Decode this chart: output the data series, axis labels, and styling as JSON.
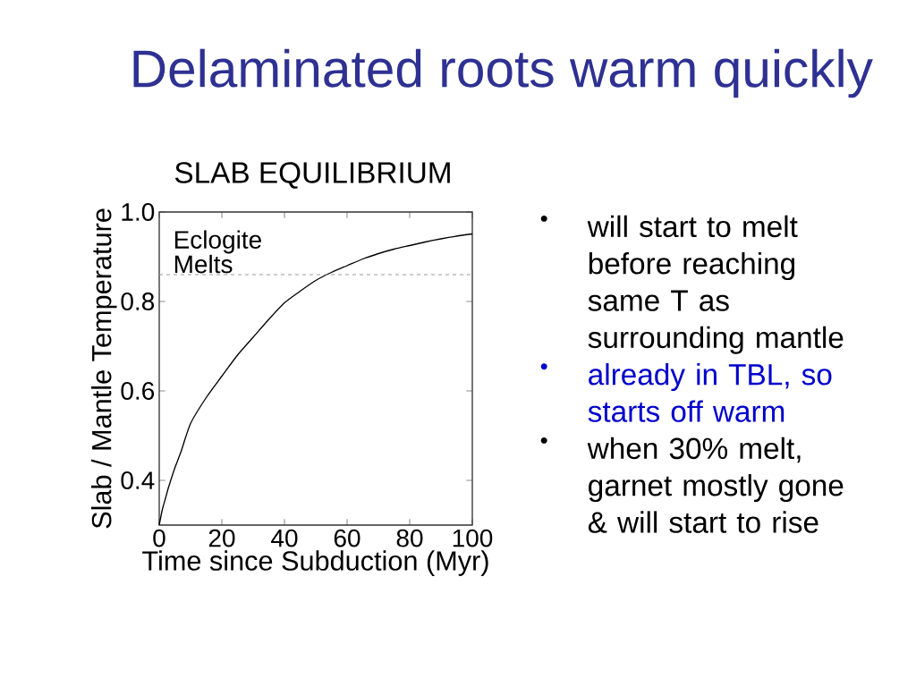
{
  "chart_data": {
    "type": "line",
    "title": "Delaminated roots warm quickly",
    "subtitle": "SLAB EQUILIBRIUM",
    "xlabel": "Time since Subduction (Myr)",
    "ylabel": "Slab / Mantle Temperature",
    "x": [
      0,
      1,
      2,
      3,
      5,
      7,
      10,
      15,
      20,
      25,
      30,
      35,
      40,
      45,
      50,
      55,
      60,
      65,
      70,
      75,
      80,
      85,
      90,
      95,
      100
    ],
    "series": [
      {
        "color": "#000000",
        "values": [
          0.3,
          0.335,
          0.36,
          0.385,
          0.428,
          0.465,
          0.527,
          0.585,
          0.633,
          0.68,
          0.72,
          0.76,
          0.797,
          0.823,
          0.847,
          0.865,
          0.88,
          0.895,
          0.907,
          0.917,
          0.925,
          0.933,
          0.94,
          0.946,
          0.951
        ]
      }
    ],
    "xlim": [
      0,
      100
    ],
    "ylim": [
      0.3,
      1.0
    ],
    "xticks": [
      0,
      20,
      40,
      60,
      80,
      100
    ],
    "yticks": [
      0.4,
      0.6,
      0.8,
      {
        "value": 1.0,
        "label": "1.0"
      }
    ],
    "ref_lines": [
      {
        "axis": "y",
        "value": 0.86,
        "label": "Eclogite Melts",
        "color": "#999999",
        "line_style": "dashed"
      }
    ],
    "annotations": [
      "will start to melt before reaching same T as surrounding mantle",
      "already in TBL, so starts off warm",
      "when 30% melt, garnet mostly gone & will start to rise"
    ],
    "grid": false,
    "marker": "none",
    "line_style": "solid"
  }
}
